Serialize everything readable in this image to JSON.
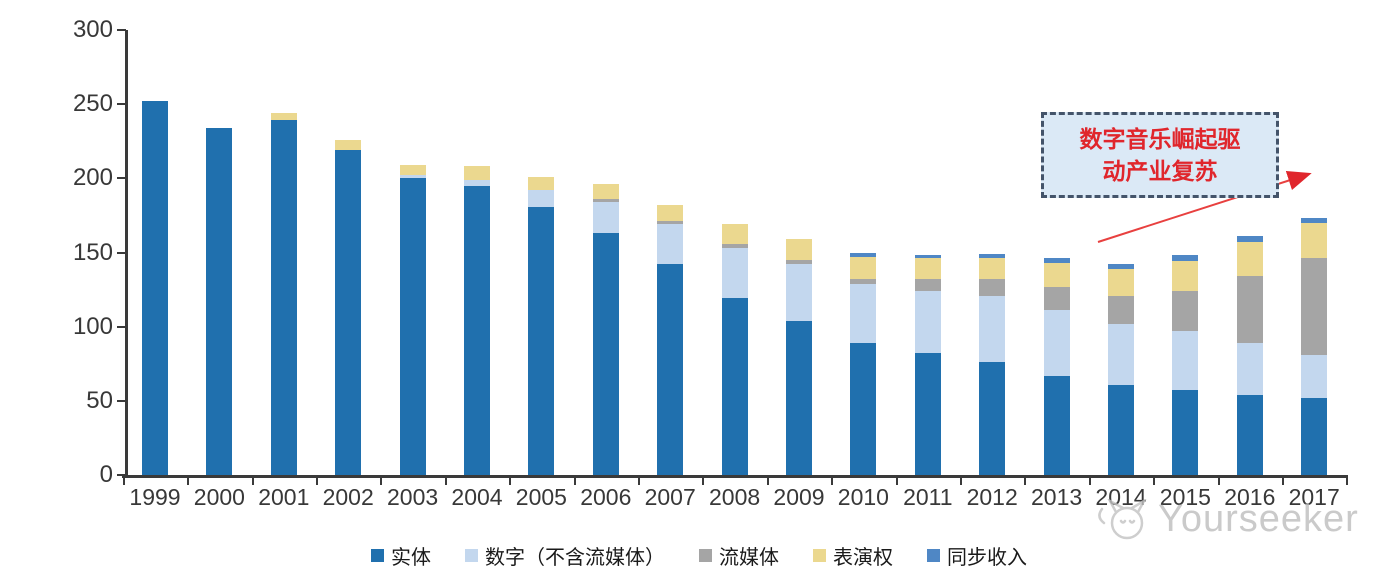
{
  "chart_data": {
    "type": "bar",
    "stacked": true,
    "title": "",
    "xlabel": "",
    "ylabel": "",
    "ylim": [
      0,
      300
    ],
    "yticks": [
      0,
      50,
      100,
      150,
      200,
      250,
      300
    ],
    "grid": false,
    "legend_position": "bottom",
    "categories": [
      "1999",
      "2000",
      "2001",
      "2002",
      "2003",
      "2004",
      "2005",
      "2006",
      "2007",
      "2008",
      "2009",
      "2010",
      "2011",
      "2012",
      "2013",
      "2014",
      "2015",
      "2016",
      "2017"
    ],
    "series": [
      {
        "name": "实体",
        "color": "#2070ae",
        "values": [
          252,
          234,
          239,
          219,
          200,
          195,
          181,
          163,
          142,
          119,
          104,
          89,
          82,
          76,
          67,
          61,
          57,
          54,
          52
        ]
      },
      {
        "name": "数字（不含流媒体）",
        "color": "#c3d7ee",
        "values": [
          0,
          0,
          0,
          0,
          2,
          4,
          11,
          21,
          27,
          34,
          38,
          40,
          42,
          45,
          44,
          41,
          40,
          35,
          29
        ]
      },
      {
        "name": "流媒体",
        "color": "#a5a5a5",
        "values": [
          0,
          0,
          0,
          0,
          0,
          0,
          0,
          2,
          2,
          3,
          3,
          3,
          8,
          11,
          16,
          19,
          27,
          45,
          65
        ]
      },
      {
        "name": "表演权",
        "color": "#ebd88f",
        "values": [
          0,
          0,
          5,
          7,
          7,
          9,
          9,
          10,
          11,
          13,
          14,
          15,
          14,
          14,
          16,
          18,
          20,
          23,
          24
        ]
      },
      {
        "name": "同步收入",
        "color": "#4f87c5",
        "values": [
          0,
          0,
          0,
          0,
          0,
          0,
          0,
          0,
          0,
          0,
          0,
          3,
          2,
          3,
          3,
          3,
          4,
          4,
          3
        ]
      }
    ],
    "totals": [
      252,
      234,
      244,
      226,
      209,
      208,
      201,
      196,
      182,
      169,
      159,
      150,
      148,
      149,
      146,
      142,
      148,
      161,
      173
    ]
  },
  "annotation": {
    "line1": "数字音乐崛起驱",
    "line2": "动产业复苏",
    "text_color": "#e0262c",
    "box_fill": "#dbe9f6",
    "box_border": "#44546a",
    "arrow_color": "#e8403f"
  },
  "watermark": {
    "text": "Yourseeker"
  },
  "axis_color": "#3a3a3a"
}
